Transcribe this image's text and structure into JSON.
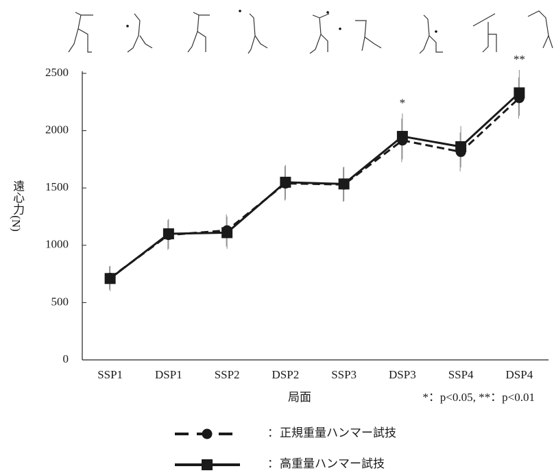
{
  "chart_data": {
    "type": "line",
    "y_label": "遠心力",
    "y_unit": "(N)",
    "x_label": "局面",
    "note": "*：p<0.05,  **：p<0.01",
    "legend_prefix": "：",
    "categories": [
      "SSP1",
      "DSP1",
      "SSP2",
      "DSP2",
      "SSP3",
      "DSP3",
      "SSP4",
      "DSP4"
    ],
    "series": [
      {
        "name": "正規重量ハンマー試技",
        "color": "#1a1a1a",
        "dash": true,
        "marker": "circle",
        "values": [
          715,
          1090,
          1130,
          1540,
          1530,
          1915,
          1815,
          2285
        ],
        "errors": [
          100,
          130,
          140,
          150,
          150,
          190,
          170,
          180
        ]
      },
      {
        "name": "高重量ハンマー試技",
        "color": "#1a1a1a",
        "dash": false,
        "marker": "square",
        "values": [
          710,
          1100,
          1110,
          1550,
          1535,
          1950,
          1860,
          2330
        ],
        "errors": [
          110,
          130,
          140,
          150,
          150,
          200,
          180,
          200
        ]
      }
    ],
    "significance": [
      {
        "category": "DSP3",
        "label": "*"
      },
      {
        "category": "DSP4",
        "label": "**"
      }
    ],
    "ylim": [
      0,
      2500
    ],
    "yticks": [
      0,
      500,
      1000,
      1500,
      2000,
      2500
    ],
    "grid": false
  }
}
